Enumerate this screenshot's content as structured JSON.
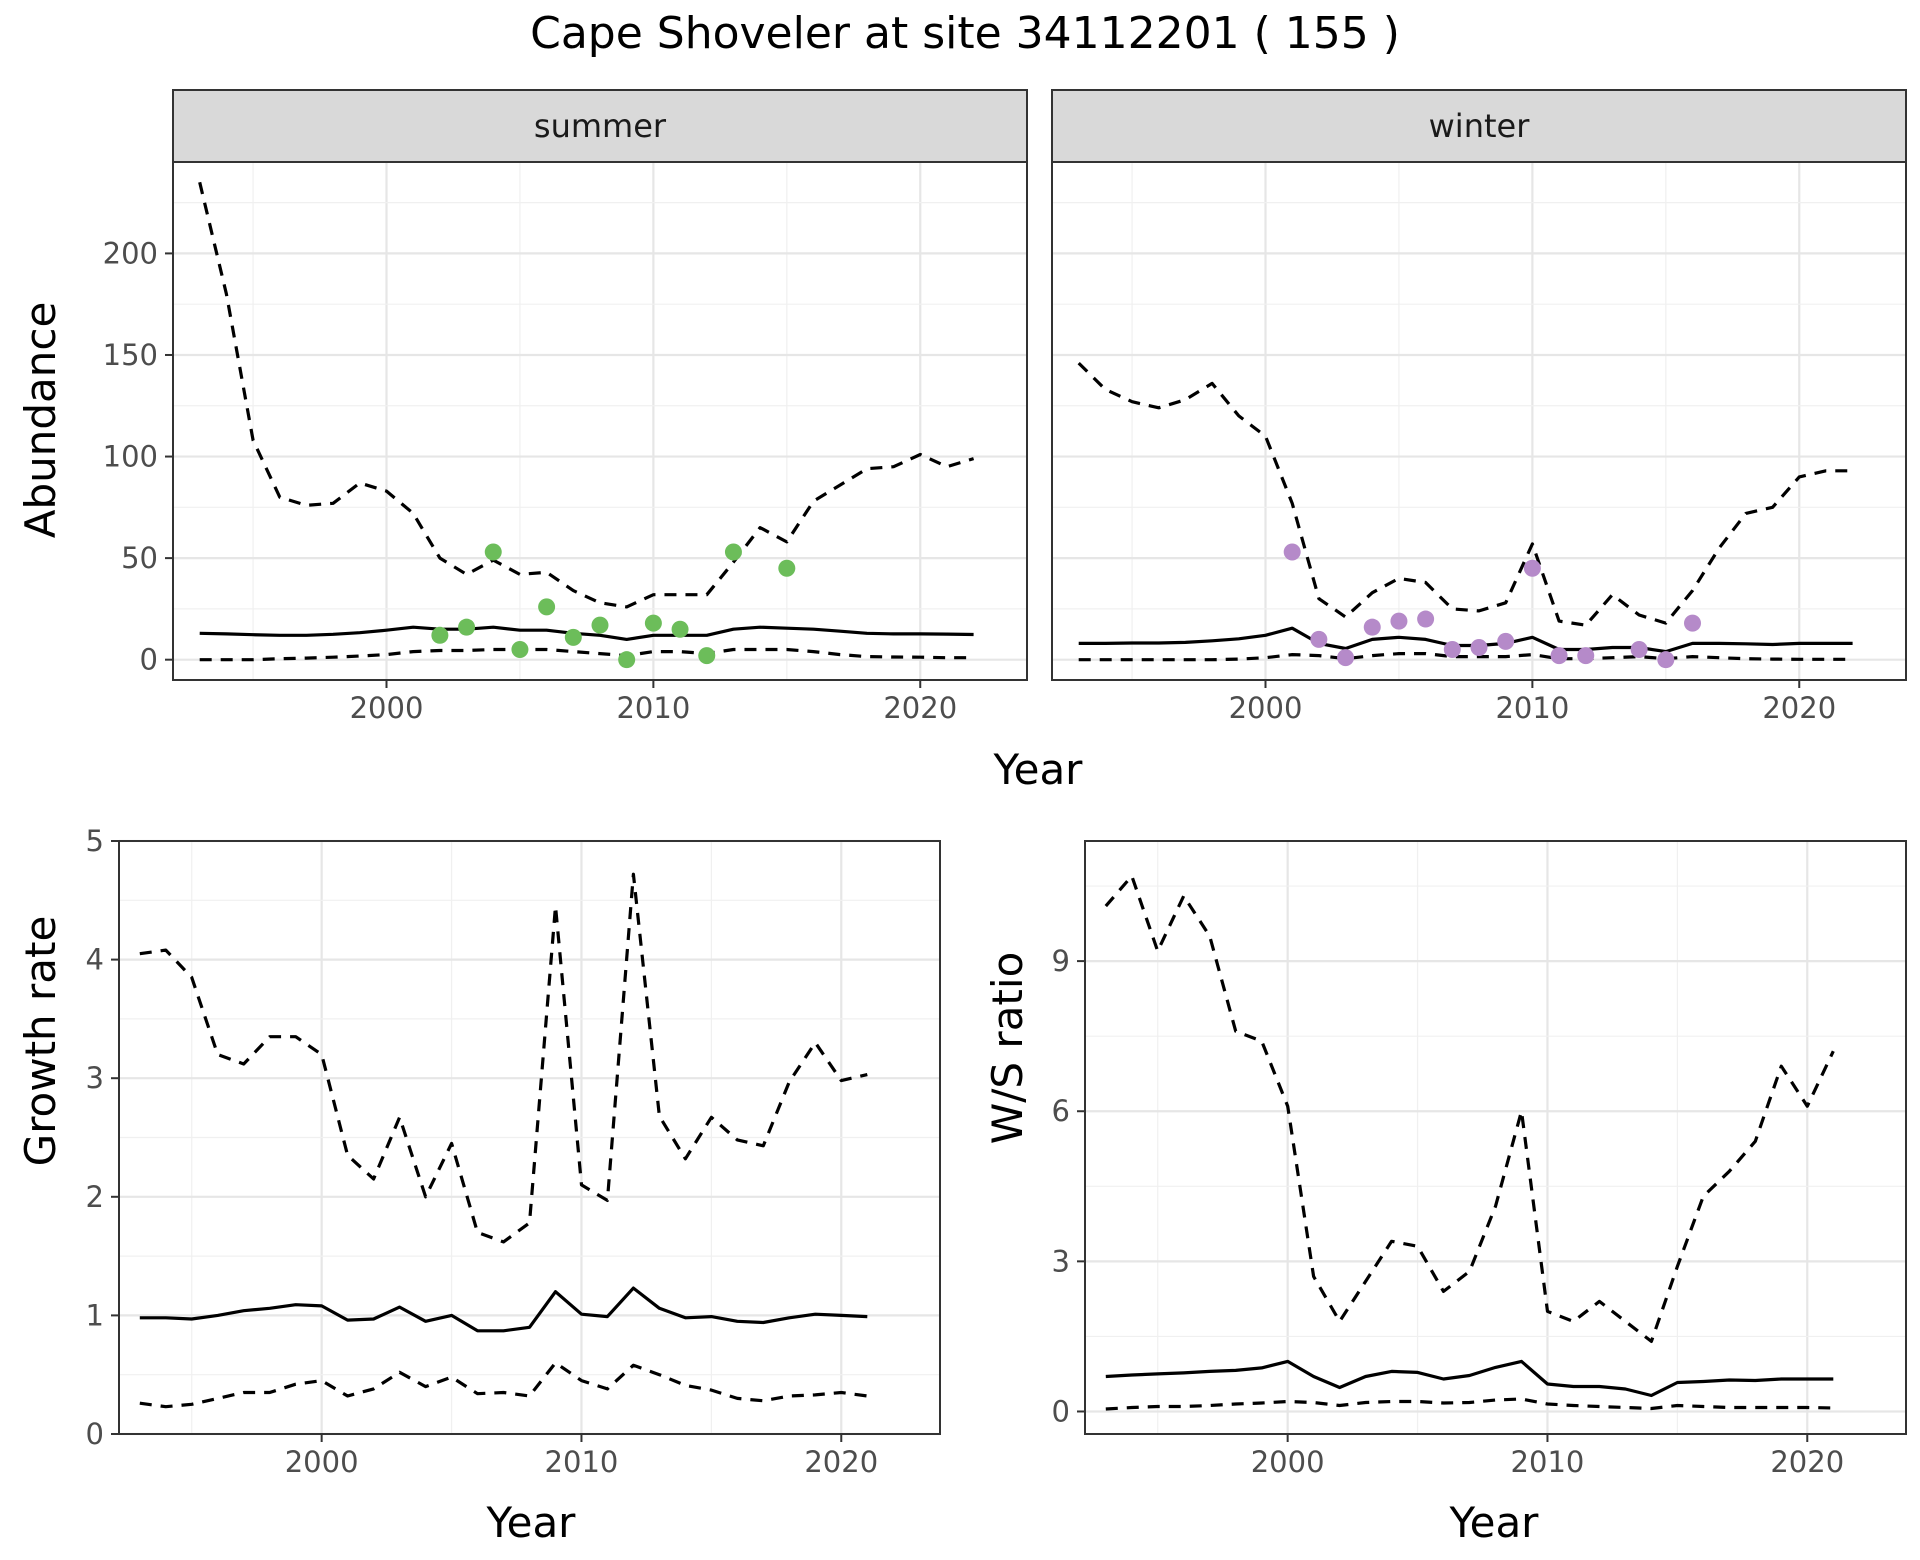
{
  "title": "Cape Shoveler at site 34112201 ( 155 )",
  "colors": {
    "summer_points": "#6cbd5a",
    "winter_points": "#b58ac9"
  },
  "chart_data": [
    {
      "id": "summer",
      "type": "line",
      "strip_label": "summer",
      "xlabel": "Year",
      "ylabel": "Abundance",
      "xlim": [
        1992,
        2024
      ],
      "ylim": [
        -10,
        245
      ],
      "xticks": [
        2000,
        2010,
        2020
      ],
      "yticks": [
        0,
        50,
        100,
        150,
        200
      ],
      "series": [
        {
          "role": "upper",
          "x": [
            1993,
            1994,
            1995,
            1996,
            1997,
            1998,
            1999,
            2000,
            2001,
            2002,
            2003,
            2004,
            2005,
            2006,
            2007,
            2008,
            2009,
            2010,
            2011,
            2012,
            2013,
            2014,
            2015,
            2016,
            2017,
            2018,
            2019,
            2020,
            2021,
            2022
          ],
          "values": [
            235,
            180,
            108,
            80,
            76,
            77,
            87,
            83,
            72,
            50,
            42,
            49,
            42,
            43,
            34,
            28,
            26,
            32,
            32,
            32,
            48,
            65,
            58,
            78,
            86,
            94,
            95,
            101,
            95,
            99
          ]
        },
        {
          "role": "mean",
          "x": [
            1993,
            1994,
            1995,
            1996,
            1997,
            1998,
            1999,
            2000,
            2001,
            2002,
            2003,
            2004,
            2005,
            2006,
            2007,
            2008,
            2009,
            2010,
            2011,
            2012,
            2013,
            2014,
            2015,
            2016,
            2017,
            2018,
            2019,
            2020,
            2021,
            2022
          ],
          "values": [
            13,
            12.7,
            12.3,
            12,
            12,
            12.5,
            13.3,
            14.5,
            16,
            15,
            15,
            16,
            14.5,
            14.5,
            13,
            12,
            10,
            12,
            12,
            12,
            15,
            16,
            15.5,
            15,
            14,
            13,
            12.7,
            12.7,
            12.6,
            12.4
          ]
        },
        {
          "role": "lower",
          "x": [
            1993,
            1994,
            1995,
            1996,
            1997,
            1998,
            1999,
            2000,
            2001,
            2002,
            2003,
            2004,
            2005,
            2006,
            2007,
            2008,
            2009,
            2010,
            2011,
            2012,
            2013,
            2014,
            2015,
            2016,
            2017,
            2018,
            2019,
            2020,
            2021,
            2022
          ],
          "values": [
            0,
            0,
            0,
            0.5,
            0.8,
            1.2,
            1.8,
            2.5,
            4,
            4.5,
            4.5,
            5,
            5,
            5,
            4,
            3,
            2,
            4,
            4,
            3,
            5,
            5,
            5,
            4,
            2.5,
            1.5,
            1.3,
            1.2,
            1,
            1
          ]
        }
      ],
      "points": {
        "x": [
          2002,
          2003,
          2004,
          2005,
          2006,
          2007,
          2008,
          2009,
          2010,
          2011,
          2012,
          2013,
          2015
        ],
        "values": [
          12,
          16,
          53,
          5,
          26,
          11,
          17,
          0,
          18,
          15,
          2,
          53,
          45
        ]
      }
    },
    {
      "id": "winter",
      "type": "line",
      "strip_label": "winter",
      "xlabel": "Year",
      "ylabel": "",
      "xlim": [
        1992,
        2024
      ],
      "ylim": [
        -10,
        245
      ],
      "xticks": [
        2000,
        2010,
        2020
      ],
      "yticks": [
        0,
        50,
        100,
        150,
        200
      ],
      "series": [
        {
          "role": "upper",
          "x": [
            1993,
            1994,
            1995,
            1996,
            1997,
            1998,
            1999,
            2000,
            2001,
            2002,
            2003,
            2004,
            2005,
            2006,
            2007,
            2008,
            2009,
            2010,
            2011,
            2012,
            2013,
            2014,
            2015,
            2016,
            2017,
            2018,
            2019,
            2020,
            2021,
            2022
          ],
          "values": [
            146,
            133,
            127,
            124,
            128,
            136,
            120,
            110,
            77,
            30,
            21,
            33,
            40,
            38,
            25,
            24,
            28,
            57,
            19,
            17,
            32,
            22,
            18,
            34,
            55,
            72,
            75,
            90,
            93,
            93
          ]
        },
        {
          "role": "mean",
          "x": [
            1993,
            1994,
            1995,
            1996,
            1997,
            1998,
            1999,
            2000,
            2001,
            2002,
            2003,
            2004,
            2005,
            2006,
            2007,
            2008,
            2009,
            2010,
            2011,
            2012,
            2013,
            2014,
            2015,
            2016,
            2017,
            2018,
            2019,
            2020,
            2021,
            2022
          ],
          "values": [
            8,
            8,
            8.2,
            8.2,
            8.5,
            9.3,
            10.3,
            12,
            15.5,
            8,
            5.5,
            10,
            11,
            10,
            7,
            7,
            8,
            11,
            5,
            5,
            6,
            6,
            4,
            8,
            8,
            7.8,
            7.5,
            8,
            8,
            8
          ]
        },
        {
          "role": "lower",
          "x": [
            1993,
            1994,
            1995,
            1996,
            1997,
            1998,
            1999,
            2000,
            2001,
            2002,
            2003,
            2004,
            2005,
            2006,
            2007,
            2008,
            2009,
            2010,
            2011,
            2012,
            2013,
            2014,
            2015,
            2016,
            2017,
            2018,
            2019,
            2020,
            2021,
            2022
          ],
          "values": [
            0,
            0,
            0,
            0,
            0,
            0,
            0.3,
            1,
            2.5,
            2,
            0.5,
            2,
            3,
            3,
            1.5,
            1.5,
            1.5,
            2.5,
            0.5,
            0.5,
            1,
            1.5,
            0.5,
            1.5,
            1,
            0.5,
            0.3,
            0.2,
            0.2,
            0.2
          ]
        }
      ],
      "points": {
        "x": [
          2001,
          2002,
          2003,
          2004,
          2005,
          2006,
          2007,
          2008,
          2009,
          2010,
          2011,
          2012,
          2014,
          2015,
          2016
        ],
        "values": [
          53,
          10,
          1,
          16,
          19,
          20,
          5,
          6,
          9,
          45,
          2,
          2,
          5,
          0,
          18
        ]
      }
    },
    {
      "id": "growth",
      "type": "line",
      "xlabel": "Year",
      "ylabel": "Growth rate",
      "xlim": [
        1992.2,
        2023.8
      ],
      "ylim": [
        0,
        5
      ],
      "xticks": [
        2000,
        2010,
        2020
      ],
      "yticks": [
        0,
        1,
        2,
        3,
        4,
        5
      ],
      "series": [
        {
          "role": "upper",
          "x": [
            1993,
            1994,
            1995,
            1996,
            1997,
            1998,
            1999,
            2000,
            2001,
            2002,
            2003,
            2004,
            2005,
            2006,
            2007,
            2008,
            2009,
            2010,
            2011,
            2012,
            2013,
            2014,
            2015,
            2016,
            2017,
            2018,
            2019,
            2020,
            2021
          ],
          "values": [
            4.05,
            4.08,
            3.85,
            3.2,
            3.12,
            3.35,
            3.35,
            3.2,
            2.35,
            2.15,
            2.67,
            2.0,
            2.45,
            1.7,
            1.62,
            1.78,
            4.45,
            2.1,
            1.97,
            4.72,
            2.68,
            2.32,
            2.67,
            2.48,
            2.43,
            2.97,
            3.3,
            2.98,
            3.03
          ]
        },
        {
          "role": "mean",
          "x": [
            1993,
            1994,
            1995,
            1996,
            1997,
            1998,
            1999,
            2000,
            2001,
            2002,
            2003,
            2004,
            2005,
            2006,
            2007,
            2008,
            2009,
            2010,
            2011,
            2012,
            2013,
            2014,
            2015,
            2016,
            2017,
            2018,
            2019,
            2020,
            2021
          ],
          "values": [
            0.98,
            0.98,
            0.97,
            1.0,
            1.04,
            1.06,
            1.09,
            1.08,
            0.96,
            0.97,
            1.07,
            0.95,
            1.0,
            0.87,
            0.87,
            0.9,
            1.2,
            1.01,
            0.99,
            1.23,
            1.06,
            0.98,
            0.99,
            0.95,
            0.94,
            0.98,
            1.01,
            1.0,
            0.99
          ]
        },
        {
          "role": "lower",
          "x": [
            1993,
            1994,
            1995,
            1996,
            1997,
            1998,
            1999,
            2000,
            2001,
            2002,
            2003,
            2004,
            2005,
            2006,
            2007,
            2008,
            2009,
            2010,
            2011,
            2012,
            2013,
            2014,
            2015,
            2016,
            2017,
            2018,
            2019,
            2020,
            2021
          ],
          "values": [
            0.26,
            0.23,
            0.25,
            0.3,
            0.35,
            0.35,
            0.42,
            0.45,
            0.32,
            0.38,
            0.52,
            0.4,
            0.48,
            0.34,
            0.35,
            0.32,
            0.6,
            0.45,
            0.38,
            0.58,
            0.5,
            0.41,
            0.37,
            0.3,
            0.28,
            0.32,
            0.33,
            0.35,
            0.32
          ]
        }
      ]
    },
    {
      "id": "ratio",
      "type": "line",
      "xlabel": "Year",
      "ylabel": "W/S ratio",
      "xlim": [
        1992.2,
        2023.8
      ],
      "ylim": [
        -0.45,
        11.4
      ],
      "xticks": [
        2000,
        2010,
        2020
      ],
      "yticks": [
        0,
        3,
        6,
        9
      ],
      "series": [
        {
          "role": "upper",
          "x": [
            1993,
            1994,
            1995,
            1996,
            1997,
            1998,
            1999,
            2000,
            2001,
            2002,
            2003,
            2004,
            2005,
            2006,
            2007,
            2008,
            2009,
            2010,
            2011,
            2012,
            2013,
            2014,
            2015,
            2016,
            2017,
            2018,
            2019,
            2020,
            2021
          ],
          "values": [
            10.1,
            10.7,
            9.2,
            10.3,
            9.5,
            7.6,
            7.4,
            6.1,
            2.7,
            1.8,
            2.6,
            3.4,
            3.3,
            2.4,
            2.8,
            4.1,
            6.0,
            2.0,
            1.8,
            2.2,
            1.8,
            1.4,
            2.9,
            4.3,
            4.8,
            5.4,
            6.9,
            6.1,
            7.2
          ]
        },
        {
          "role": "mean",
          "x": [
            1993,
            1994,
            1995,
            1996,
            1997,
            1998,
            1999,
            2000,
            2001,
            2002,
            2003,
            2004,
            2005,
            2006,
            2007,
            2008,
            2009,
            2010,
            2011,
            2012,
            2013,
            2014,
            2015,
            2016,
            2017,
            2018,
            2019,
            2020,
            2021
          ],
          "values": [
            0.7,
            0.73,
            0.75,
            0.77,
            0.8,
            0.82,
            0.87,
            1.0,
            0.7,
            0.48,
            0.7,
            0.8,
            0.78,
            0.65,
            0.72,
            0.88,
            1.0,
            0.55,
            0.5,
            0.5,
            0.45,
            0.32,
            0.58,
            0.6,
            0.63,
            0.62,
            0.65,
            0.65,
            0.65
          ]
        },
        {
          "role": "lower",
          "x": [
            1993,
            1994,
            1995,
            1996,
            1997,
            1998,
            1999,
            2000,
            2001,
            2002,
            2003,
            2004,
            2005,
            2006,
            2007,
            2008,
            2009,
            2010,
            2011,
            2012,
            2013,
            2014,
            2015,
            2016,
            2017,
            2018,
            2019,
            2020,
            2021
          ],
          "values": [
            0.05,
            0.08,
            0.1,
            0.1,
            0.12,
            0.15,
            0.17,
            0.2,
            0.18,
            0.12,
            0.18,
            0.2,
            0.2,
            0.17,
            0.18,
            0.23,
            0.25,
            0.15,
            0.12,
            0.1,
            0.08,
            0.06,
            0.12,
            0.1,
            0.08,
            0.08,
            0.08,
            0.08,
            0.07
          ]
        }
      ]
    }
  ]
}
